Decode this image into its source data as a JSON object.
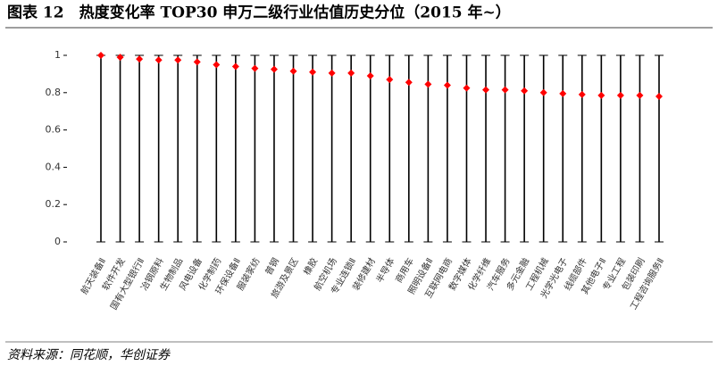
{
  "chart_data": {
    "type": "range-dot",
    "title": "图表 12　热度变化率 TOP30 申万二级行业估值历史分位（2015 年~）",
    "source": "资料来源：同花顺，华创证券",
    "categories": [
      "航天装备Ⅱ",
      "软件开发",
      "国有大型银行Ⅱ",
      "冶钢原料",
      "生物制品",
      "风电设备",
      "化学制药",
      "环保设备Ⅱ",
      "服装家纺",
      "普钢",
      "旅游及景区",
      "橡胶",
      "航空机场",
      "专业连锁Ⅱ",
      "装修建材",
      "半导体",
      "商用车",
      "照明设备Ⅱ",
      "互联网电商",
      "数字媒体",
      "化学纤维",
      "汽车服务",
      "多元金融",
      "工程机械",
      "光学光电子",
      "线缆部件",
      "其他电子Ⅱ",
      "专业工程",
      "包装印刷",
      "工程咨询服务Ⅱ"
    ],
    "values": [
      1,
      0.99,
      0.98,
      0.975,
      0.975,
      0.965,
      0.95,
      0.94,
      0.93,
      0.925,
      0.915,
      0.91,
      0.905,
      0.905,
      0.89,
      0.87,
      0.855,
      0.845,
      0.84,
      0.825,
      0.815,
      0.815,
      0.81,
      0.8,
      0.795,
      0.79,
      0.785,
      0.785,
      0.785,
      0.78
    ],
    "color": "#ff0000",
    "ylim": [
      0,
      1
    ],
    "yticks": [
      0,
      0.2,
      0.4,
      0.6,
      0.8,
      1
    ]
  }
}
